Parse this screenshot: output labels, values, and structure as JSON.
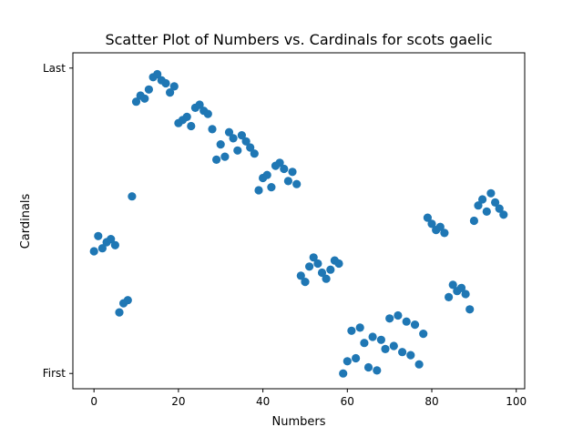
{
  "chart_data": {
    "type": "scatter",
    "title": "Scatter Plot of Numbers vs. Cardinals for scots gaelic",
    "xlabel": "Numbers",
    "ylabel": "Cardinals",
    "xlim": [
      -5,
      102
    ],
    "ylim": [
      -5,
      105
    ],
    "xticks": [
      0,
      20,
      40,
      60,
      80,
      100
    ],
    "yticks": [
      {
        "value": 0,
        "label": "First"
      },
      {
        "value": 100,
        "label": "Last"
      }
    ],
    "grid": false,
    "marker_color": "#1f77b4",
    "points": [
      [
        0,
        40
      ],
      [
        1,
        45
      ],
      [
        2,
        41
      ],
      [
        3,
        43
      ],
      [
        4,
        44
      ],
      [
        5,
        42
      ],
      [
        6,
        20
      ],
      [
        7,
        23
      ],
      [
        8,
        24
      ],
      [
        9,
        58
      ],
      [
        10,
        89
      ],
      [
        11,
        91
      ],
      [
        12,
        90
      ],
      [
        13,
        93
      ],
      [
        14,
        97
      ],
      [
        15,
        98
      ],
      [
        16,
        96
      ],
      [
        17,
        95
      ],
      [
        18,
        92
      ],
      [
        19,
        94
      ],
      [
        20,
        82
      ],
      [
        21,
        83
      ],
      [
        22,
        84
      ],
      [
        23,
        81
      ],
      [
        24,
        87
      ],
      [
        25,
        88
      ],
      [
        26,
        86
      ],
      [
        27,
        85
      ],
      [
        28,
        80
      ],
      [
        29,
        70
      ],
      [
        30,
        75
      ],
      [
        31,
        71
      ],
      [
        32,
        79
      ],
      [
        33,
        77
      ],
      [
        34,
        73
      ],
      [
        35,
        78
      ],
      [
        36,
        76
      ],
      [
        37,
        74
      ],
      [
        38,
        72
      ],
      [
        39,
        60
      ],
      [
        40,
        64
      ],
      [
        41,
        65
      ],
      [
        42,
        61
      ],
      [
        43,
        68
      ],
      [
        44,
        69
      ],
      [
        45,
        67
      ],
      [
        46,
        63
      ],
      [
        47,
        66
      ],
      [
        48,
        62
      ],
      [
        49,
        32
      ],
      [
        50,
        30
      ],
      [
        51,
        35
      ],
      [
        52,
        38
      ],
      [
        53,
        36
      ],
      [
        54,
        33
      ],
      [
        55,
        31
      ],
      [
        56,
        34
      ],
      [
        57,
        37
      ],
      [
        58,
        36
      ],
      [
        59,
        0
      ],
      [
        60,
        4
      ],
      [
        61,
        14
      ],
      [
        62,
        5
      ],
      [
        63,
        15
      ],
      [
        64,
        10
      ],
      [
        65,
        2
      ],
      [
        66,
        12
      ],
      [
        67,
        1
      ],
      [
        68,
        11
      ],
      [
        69,
        8
      ],
      [
        70,
        18
      ],
      [
        71,
        9
      ],
      [
        72,
        19
      ],
      [
        73,
        7
      ],
      [
        74,
        17
      ],
      [
        75,
        6
      ],
      [
        76,
        16
      ],
      [
        77,
        3
      ],
      [
        78,
        13
      ],
      [
        79,
        51
      ],
      [
        80,
        49
      ],
      [
        81,
        47
      ],
      [
        82,
        48
      ],
      [
        83,
        46
      ],
      [
        84,
        25
      ],
      [
        85,
        29
      ],
      [
        86,
        27
      ],
      [
        87,
        28
      ],
      [
        88,
        26
      ],
      [
        89,
        21
      ],
      [
        90,
        50
      ],
      [
        91,
        55
      ],
      [
        92,
        57
      ],
      [
        93,
        53
      ],
      [
        94,
        59
      ],
      [
        95,
        56
      ],
      [
        96,
        54
      ],
      [
        97,
        52
      ]
    ]
  }
}
